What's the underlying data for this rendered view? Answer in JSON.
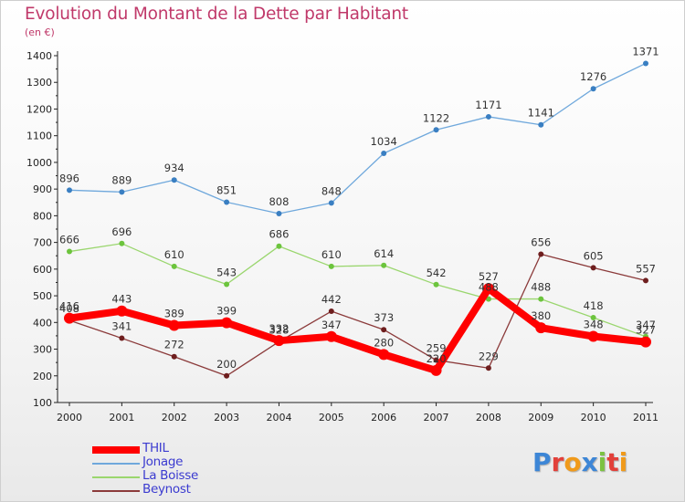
{
  "title": "Evolution du Montant de la Dette par Habitant",
  "unit": "(en €)",
  "colors": {
    "title": "#c0396a",
    "background": "#ffffff",
    "legend_text": "#3b3bd0"
  },
  "logo": {
    "text": "Proxiti",
    "letters": [
      {
        "ch": "P",
        "color": "#3d86d6"
      },
      {
        "ch": "r",
        "color": "#e2403a"
      },
      {
        "ch": "o",
        "color": "#f09a1b"
      },
      {
        "ch": "x",
        "color": "#3d86d6"
      },
      {
        "ch": "i",
        "color": "#7cc242"
      },
      {
        "ch": "t",
        "color": "#e2403a"
      },
      {
        "ch": "i",
        "color": "#f09a1b"
      }
    ]
  },
  "chart_data": {
    "type": "line",
    "title": "Evolution du Montant de la Dette par Habitant",
    "ylabel": "(en €)",
    "xlabel": "",
    "x": [
      "2000",
      "2001",
      "2002",
      "2003",
      "2004",
      "2005",
      "2006",
      "2007",
      "2008",
      "2009",
      "2010",
      "2011"
    ],
    "ylim": [
      100,
      1400
    ],
    "yticks": [
      100,
      200,
      300,
      400,
      500,
      600,
      700,
      800,
      900,
      1000,
      1100,
      1200,
      1300,
      1400
    ],
    "grid": false,
    "legend": "bottom-left",
    "series": [
      {
        "name": "THIL",
        "color": "#ff0000",
        "width": 8,
        "marker": 6,
        "values": [
          416,
          443,
          389,
          399,
          332,
          347,
          280,
          220,
          527,
          380,
          348,
          327
        ]
      },
      {
        "name": "Jonage",
        "color": "#6fa8dc",
        "point": "#3a7fc2",
        "width": 1.3,
        "marker": 3,
        "values": [
          896,
          889,
          934,
          851,
          808,
          848,
          1034,
          1122,
          1171,
          1141,
          1276,
          1371
        ]
      },
      {
        "name": "La Boisse",
        "color": "#9ad66e",
        "point": "#6cc43d",
        "width": 1.3,
        "marker": 3,
        "values": [
          666,
          696,
          610,
          543,
          686,
          610,
          614,
          542,
          488,
          488,
          418,
          347
        ]
      },
      {
        "name": "Beynost",
        "color": "#8b3a3a",
        "point": "#6e1e1e",
        "width": 1.3,
        "marker": 3,
        "values": [
          408,
          341,
          272,
          200,
          328,
          442,
          373,
          259,
          229,
          656,
          605,
          557
        ]
      }
    ]
  }
}
